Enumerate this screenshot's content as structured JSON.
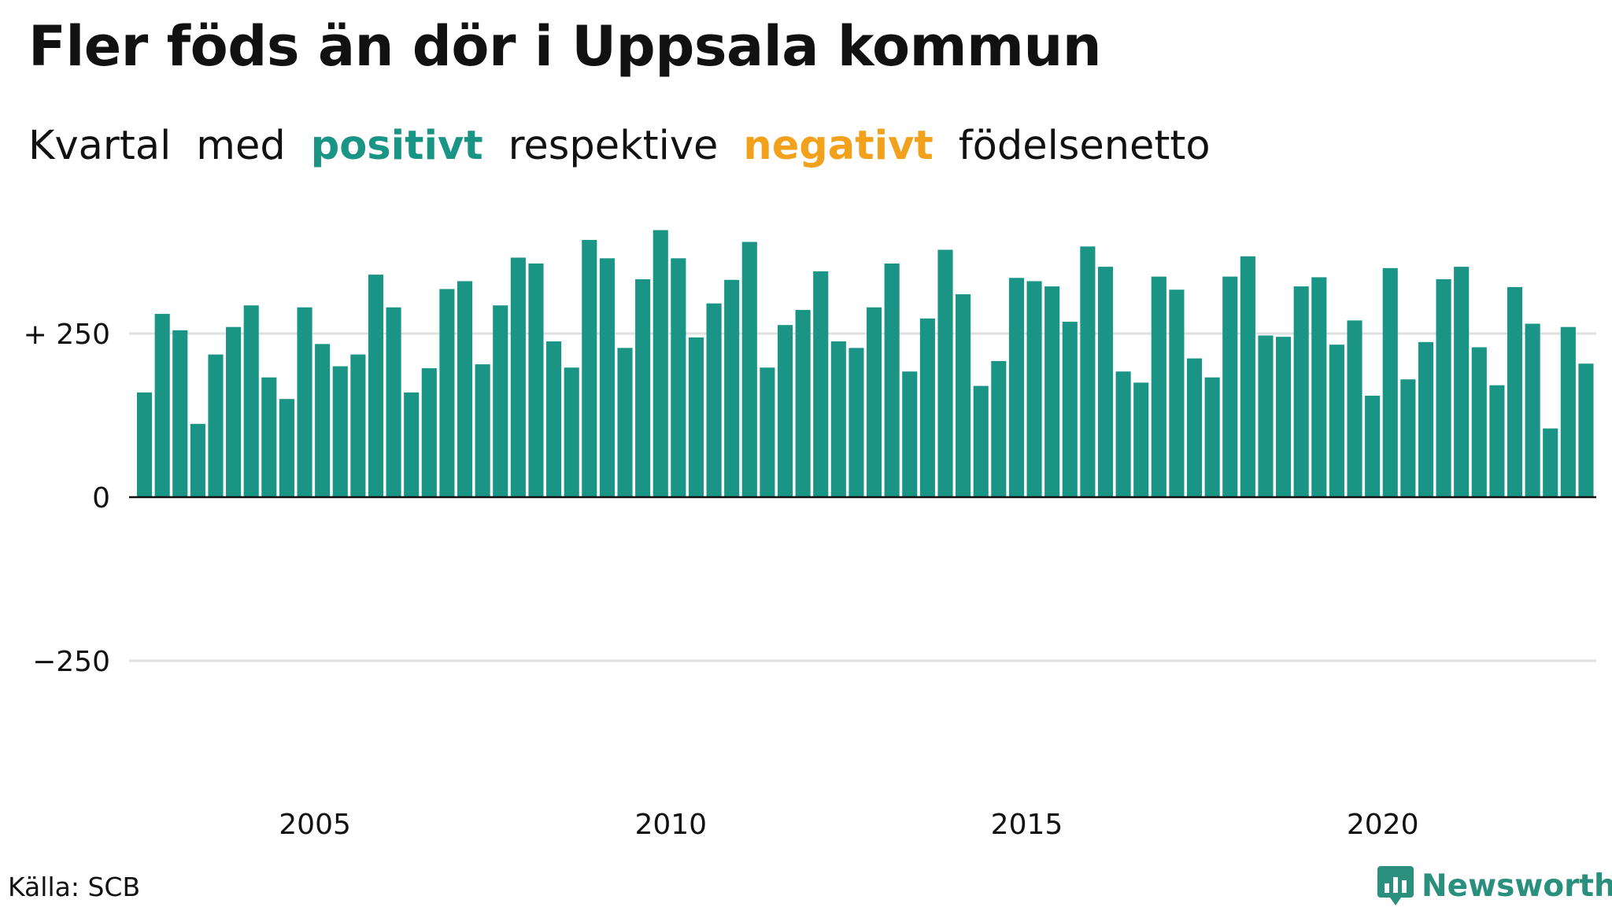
{
  "title": "Fler föds än dör i Uppsala kommun",
  "subtitle": {
    "w1": "Kvartal",
    "w2": "med",
    "positive": "positivt",
    "w3": "respektive",
    "negative": "negativt",
    "w4": "födelsenetto"
  },
  "source": "Källa: SCB",
  "brand": "Newsworthy",
  "colors": {
    "positive": "#1a9485",
    "negative": "#f2a11c",
    "grid": "#e0e0e0",
    "axis": "#111111",
    "brand": "#2a8f7c"
  },
  "chart_data": {
    "type": "bar",
    "ylim": [
      -500,
      500
    ],
    "yticks": [
      {
        "value": 250,
        "label": "+ 250"
      },
      {
        "value": 0,
        "label": "0"
      },
      {
        "value": -250,
        "label": "−250"
      }
    ],
    "xtick_labels": [
      "2005",
      "2010",
      "2015",
      "2020"
    ],
    "start_year": 2003,
    "start_quarter": 1,
    "values": [
      160,
      280,
      255,
      112,
      218,
      260,
      293,
      183,
      150,
      290,
      234,
      200,
      218,
      340,
      290,
      160,
      197,
      318,
      330,
      203,
      293,
      366,
      357,
      238,
      198,
      393,
      365,
      228,
      333,
      408,
      365,
      244,
      296,
      332,
      390,
      198,
      263,
      286,
      345,
      238,
      228,
      290,
      357,
      192,
      273,
      378,
      310,
      170,
      208,
      335,
      330,
      322,
      268,
      383,
      352,
      192,
      175,
      337,
      317,
      212,
      183,
      337,
      368,
      247,
      245,
      322,
      336,
      233,
      270,
      155,
      350,
      180,
      237,
      333,
      352,
      229,
      171,
      321,
      265,
      105,
      260,
      204
    ]
  }
}
